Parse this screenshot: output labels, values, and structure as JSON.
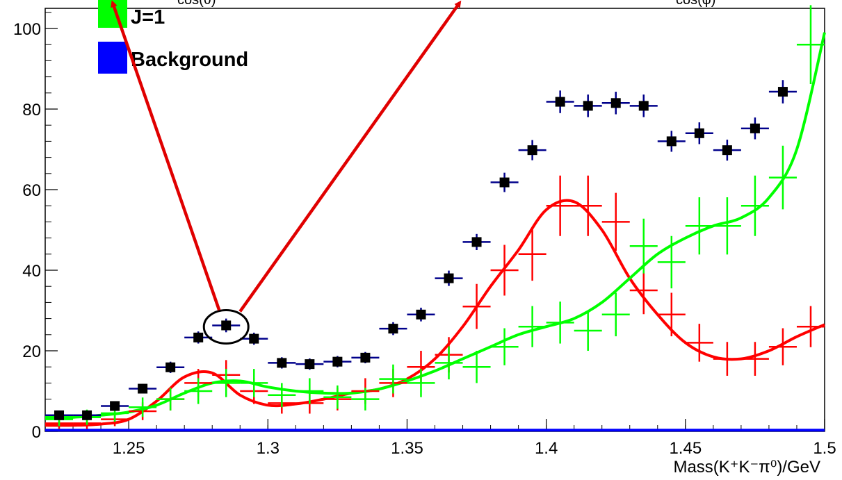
{
  "chart_data": {
    "type": "scatter",
    "xlabel": "Mass(K⁺K⁻π⁰)/GeV",
    "ylabel": "",
    "xlim": [
      1.22,
      1.5
    ],
    "ylim": [
      0,
      105
    ],
    "x_ticks": [
      "1.25",
      "1.3",
      "1.35",
      "1.4",
      "1.45",
      "1.5"
    ],
    "y_ticks": [
      "0",
      "20",
      "40",
      "60",
      "80",
      "100"
    ],
    "top_labels": [
      "cos(θ)",
      "cos(φ)"
    ],
    "legend": [
      {
        "label": "J=1",
        "color": "#00ff00"
      },
      {
        "label": "Background",
        "color": "#0000ff"
      }
    ],
    "series": [
      {
        "name": "",
        "style": "square-markers",
        "color": "#000000",
        "error_color": "#00008b",
        "x": [
          1.225,
          1.235,
          1.245,
          1.255,
          1.265,
          1.275,
          1.285,
          1.295,
          1.305,
          1.315,
          1.325,
          1.335,
          1.345,
          1.355,
          1.365,
          1.375,
          1.385,
          1.395,
          1.405,
          1.415,
          1.425,
          1.435,
          1.445,
          1.455,
          1.465,
          1.475,
          1.485
        ],
        "y": [
          4.0,
          4.0,
          6.3,
          10.6,
          15.9,
          23.3,
          26.3,
          23.0,
          17.0,
          16.7,
          17.3,
          18.3,
          25.5,
          29.0,
          38.0,
          47.0,
          61.8,
          69.8,
          81.8,
          80.8,
          81.5,
          80.8,
          72.0,
          74.0,
          69.8,
          75.2,
          84.3
        ],
        "yerr": [
          0.8,
          0.8,
          1.0,
          1.2,
          1.4,
          1.5,
          1.7,
          1.5,
          1.4,
          1.4,
          1.4,
          1.4,
          1.6,
          1.7,
          1.9,
          2.0,
          2.4,
          2.5,
          2.8,
          2.8,
          2.8,
          2.8,
          2.6,
          2.7,
          2.6,
          2.7,
          2.9
        ]
      },
      {
        "name": "",
        "style": "error-crosses",
        "color": "#ff0000",
        "x": [
          1.225,
          1.235,
          1.245,
          1.255,
          1.265,
          1.275,
          1.285,
          1.295,
          1.305,
          1.315,
          1.325,
          1.335,
          1.345,
          1.355,
          1.365,
          1.375,
          1.385,
          1.395,
          1.405,
          1.415,
          1.425,
          1.435,
          1.445,
          1.455,
          1.465,
          1.475,
          1.485,
          1.495
        ],
        "y": [
          2.0,
          2.0,
          3.0,
          5.0,
          8.0,
          12.0,
          14.0,
          10.0,
          7.0,
          7.0,
          8.0,
          10.0,
          12.0,
          16.0,
          19.0,
          31.0,
          40.0,
          44.0,
          56.0,
          56.0,
          52.0,
          35.0,
          29.0,
          22.0,
          18.0,
          18.0,
          21.0,
          26.0
        ],
        "yerr": [
          1.4,
          1.4,
          1.7,
          2.2,
          2.8,
          3.5,
          3.7,
          3.2,
          2.6,
          2.6,
          2.8,
          3.2,
          3.5,
          4.0,
          4.4,
          5.6,
          6.3,
          6.6,
          7.5,
          7.5,
          7.2,
          5.9,
          5.4,
          4.7,
          4.2,
          4.2,
          4.6,
          5.1
        ]
      },
      {
        "name": "",
        "style": "error-crosses",
        "color": "#00ff00",
        "x": [
          1.225,
          1.235,
          1.245,
          1.255,
          1.265,
          1.275,
          1.285,
          1.295,
          1.305,
          1.315,
          1.325,
          1.335,
          1.345,
          1.355,
          1.365,
          1.375,
          1.385,
          1.395,
          1.405,
          1.415,
          1.425,
          1.435,
          1.445,
          1.455,
          1.465,
          1.475,
          1.485,
          1.495
        ],
        "y": [
          3.0,
          3.5,
          4.5,
          6.0,
          8.0,
          10.0,
          12.0,
          12.0,
          9.0,
          10.0,
          8.5,
          8.0,
          13.0,
          12.0,
          17.0,
          16.0,
          21.0,
          26.0,
          27.0,
          25.0,
          29.0,
          46.0,
          42.0,
          51.0,
          51.0,
          56.0,
          63.0,
          96.0
        ],
        "yerr": [
          1.7,
          1.9,
          2.1,
          2.4,
          2.8,
          3.2,
          3.5,
          3.5,
          3.0,
          3.2,
          2.9,
          2.8,
          3.6,
          3.5,
          4.1,
          4.0,
          4.6,
          5.1,
          5.2,
          5.0,
          5.4,
          6.8,
          6.5,
          7.1,
          7.1,
          7.5,
          7.9,
          9.8
        ]
      },
      {
        "name": "",
        "style": "line",
        "color": "#ff0000",
        "x": [
          1.22,
          1.23,
          1.24,
          1.25,
          1.26,
          1.27,
          1.28,
          1.29,
          1.3,
          1.31,
          1.32,
          1.33,
          1.34,
          1.35,
          1.36,
          1.37,
          1.38,
          1.39,
          1.4,
          1.41,
          1.42,
          1.43,
          1.44,
          1.45,
          1.46,
          1.47,
          1.48,
          1.49,
          1.5
        ],
        "y": [
          1.5,
          1.5,
          1.8,
          3.0,
          7.5,
          13.5,
          14.5,
          9.0,
          6.5,
          6.8,
          8.0,
          9.5,
          10.5,
          13.0,
          18.0,
          26.0,
          36.0,
          45.0,
          55.0,
          57.0,
          50.0,
          38.0,
          29.0,
          22.0,
          18.5,
          18.0,
          20.0,
          23.5,
          26.5
        ]
      },
      {
        "name": "",
        "style": "line",
        "color": "#00ff00",
        "x": [
          1.22,
          1.23,
          1.24,
          1.25,
          1.26,
          1.27,
          1.28,
          1.29,
          1.3,
          1.31,
          1.32,
          1.33,
          1.34,
          1.35,
          1.36,
          1.37,
          1.38,
          1.39,
          1.4,
          1.41,
          1.42,
          1.43,
          1.44,
          1.45,
          1.46,
          1.47,
          1.48,
          1.49,
          1.5
        ],
        "y": [
          3.5,
          3.5,
          4.0,
          4.8,
          6.5,
          9.5,
          12.0,
          12.5,
          11.0,
          10.0,
          9.5,
          9.5,
          10.5,
          12.5,
          15.0,
          18.0,
          21.0,
          24.0,
          26.0,
          28.0,
          32.0,
          38.0,
          44.0,
          48.0,
          51.0,
          53.0,
          58.0,
          70.0,
          99.0
        ]
      },
      {
        "name": "",
        "style": "line",
        "color": "#0000ff",
        "x": [
          1.22,
          1.5
        ],
        "y": [
          0.3,
          0.3
        ]
      }
    ],
    "annotations": {
      "highlight_point": {
        "x": 1.285,
        "y": 26.3
      },
      "arrow_color": "#e00000"
    }
  }
}
